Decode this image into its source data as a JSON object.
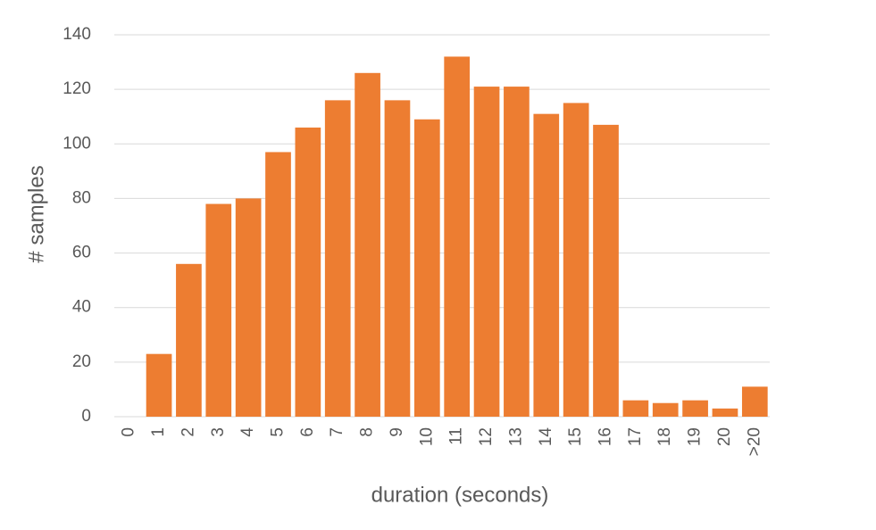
{
  "chart_data": {
    "type": "bar",
    "x_label": "duration (seconds)",
    "y_label": "# samples",
    "categories": [
      "0",
      "1",
      "2",
      "3",
      "4",
      "5",
      "6",
      "7",
      "8",
      "9",
      "10",
      "11",
      "12",
      "13",
      "14",
      "15",
      "16",
      "17",
      "18",
      "19",
      "20",
      ">20"
    ],
    "values": [
      0,
      23,
      56,
      78,
      80,
      97,
      106,
      116,
      126,
      116,
      109,
      132,
      121,
      121,
      111,
      115,
      107,
      6,
      5,
      6,
      3,
      11
    ],
    "color": "#ed7d31",
    "ylim": [
      0,
      140
    ],
    "yticks": [
      0,
      20,
      40,
      60,
      80,
      100,
      120,
      140
    ],
    "grid": true
  }
}
